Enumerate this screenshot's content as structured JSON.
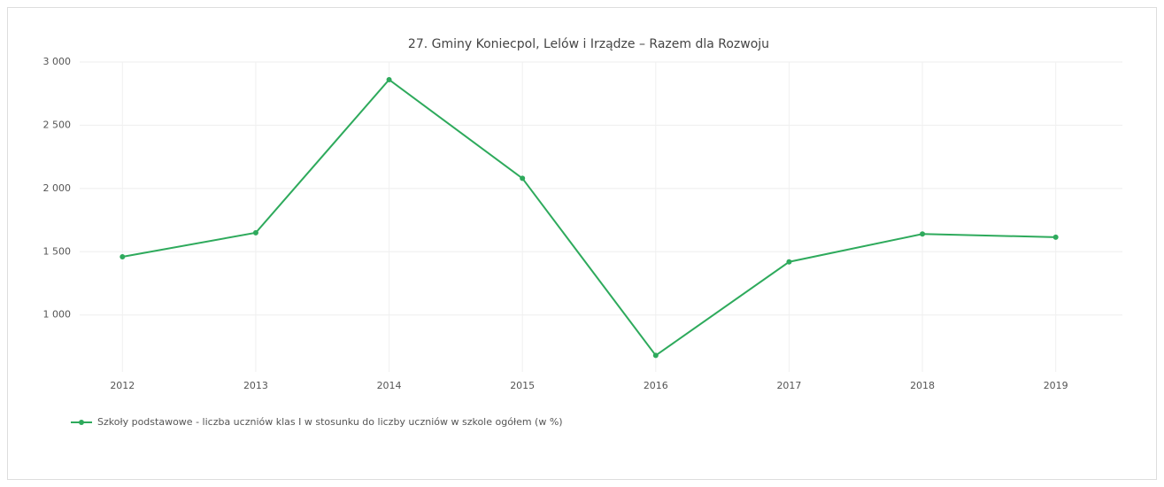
{
  "chart_data": {
    "type": "line",
    "title": "27. Gminy Koniecpol, Lelów  i Irządze – Razem dla Rozwoju",
    "categories": [
      "2012",
      "2013",
      "2014",
      "2015",
      "2016",
      "2017",
      "2018",
      "2019"
    ],
    "series": [
      {
        "name": "Szkoły podstawowe - liczba uczniów klas I w stosunku do liczby uczniów w szkole ogółem (w %)",
        "color": "#2eaa5c",
        "values": [
          1460,
          1650,
          2860,
          2080,
          680,
          1420,
          1640,
          1615
        ]
      }
    ],
    "ylim": [
      550,
      3000
    ],
    "yticks": [
      {
        "value": 1000,
        "label": "1 000"
      },
      {
        "value": 1500,
        "label": "1 500"
      },
      {
        "value": 2000,
        "label": "2 000"
      },
      {
        "value": 2500,
        "label": "2 500"
      },
      {
        "value": 3000,
        "label": "3 000"
      }
    ],
    "grid": true,
    "legend": "bottom-left"
  }
}
